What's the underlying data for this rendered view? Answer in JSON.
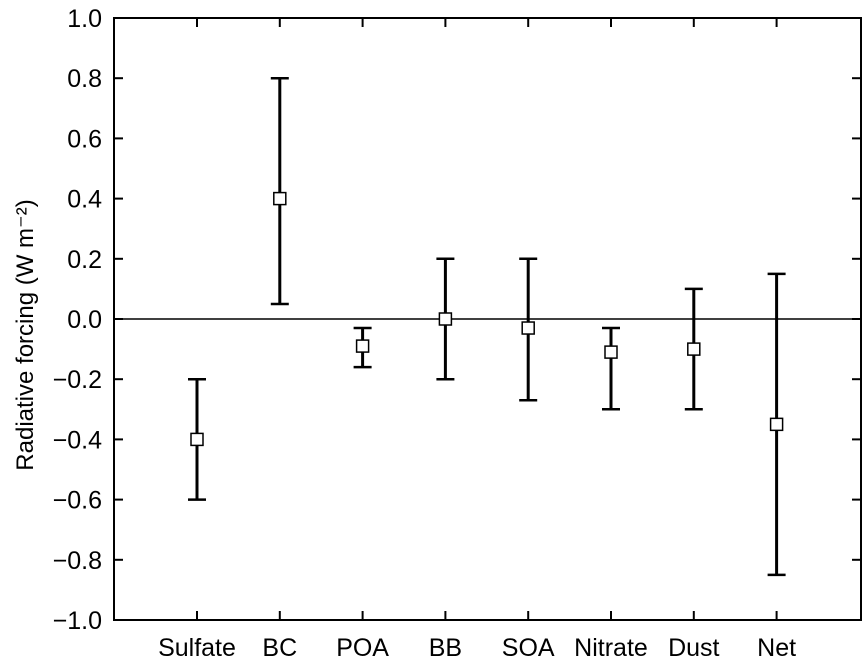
{
  "chart_data": {
    "type": "scatter",
    "title": "",
    "xlabel": "",
    "ylabel": "Radiative forcing (W m⁻²)",
    "categories": [
      "Sulfate",
      "BC",
      "POA",
      "BB",
      "SOA",
      "Nitrate",
      "Dust",
      "Net"
    ],
    "series": [
      {
        "values": [
          -0.4,
          0.4,
          -0.09,
          0.0,
          -0.03,
          -0.11,
          -0.1,
          -0.35
        ],
        "error_low": [
          -0.6,
          0.05,
          -0.16,
          -0.2,
          -0.27,
          -0.3,
          -0.3,
          -0.85
        ],
        "error_high": [
          -0.2,
          0.8,
          -0.03,
          0.2,
          0.2,
          -0.03,
          0.1,
          0.15
        ]
      }
    ],
    "ylim": [
      -1.0,
      1.0
    ],
    "yticks": [
      1.0,
      0.8,
      0.6,
      0.4,
      0.2,
      0.0,
      -0.2,
      -0.4,
      -0.6,
      -0.8,
      -1.0
    ],
    "ytick_labels": [
      "1.0",
      "0.8",
      "0.6",
      "0.4",
      "0.2",
      "0.0",
      "−0.2",
      "−0.4",
      "−0.6",
      "−0.8",
      "−1.0"
    ],
    "zero_line": true,
    "grid": false,
    "legend": "none",
    "marker": "open-square",
    "colors": {
      "line": "#000000",
      "marker_fill": "#ffffff"
    }
  }
}
